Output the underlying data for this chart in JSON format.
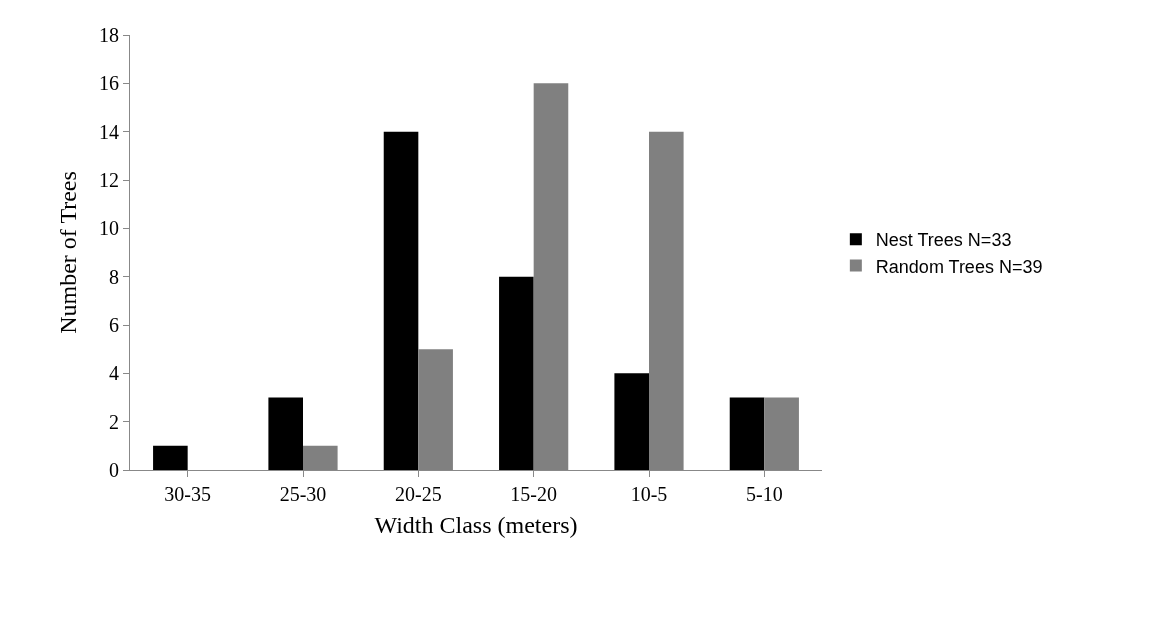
{
  "chart_data": {
    "type": "bar",
    "xlabel": "Width Class (meters)",
    "ylabel": "Number of Trees",
    "categories": [
      "30-35",
      "25-30",
      "20-25",
      "15-20",
      "10-5",
      "5-10"
    ],
    "series": [
      {
        "name": "Nest Trees N=33",
        "color": "#000000",
        "values": [
          1,
          3,
          14,
          8,
          4,
          3
        ]
      },
      {
        "name": "Random Trees N=39",
        "color": "#808080",
        "values": [
          0,
          1,
          5,
          16,
          14,
          3
        ]
      }
    ],
    "ylim": [
      0,
      18
    ],
    "yticks": [
      0,
      2,
      4,
      6,
      8,
      10,
      12,
      14,
      16,
      18
    ],
    "grid": false,
    "legend": "right"
  }
}
